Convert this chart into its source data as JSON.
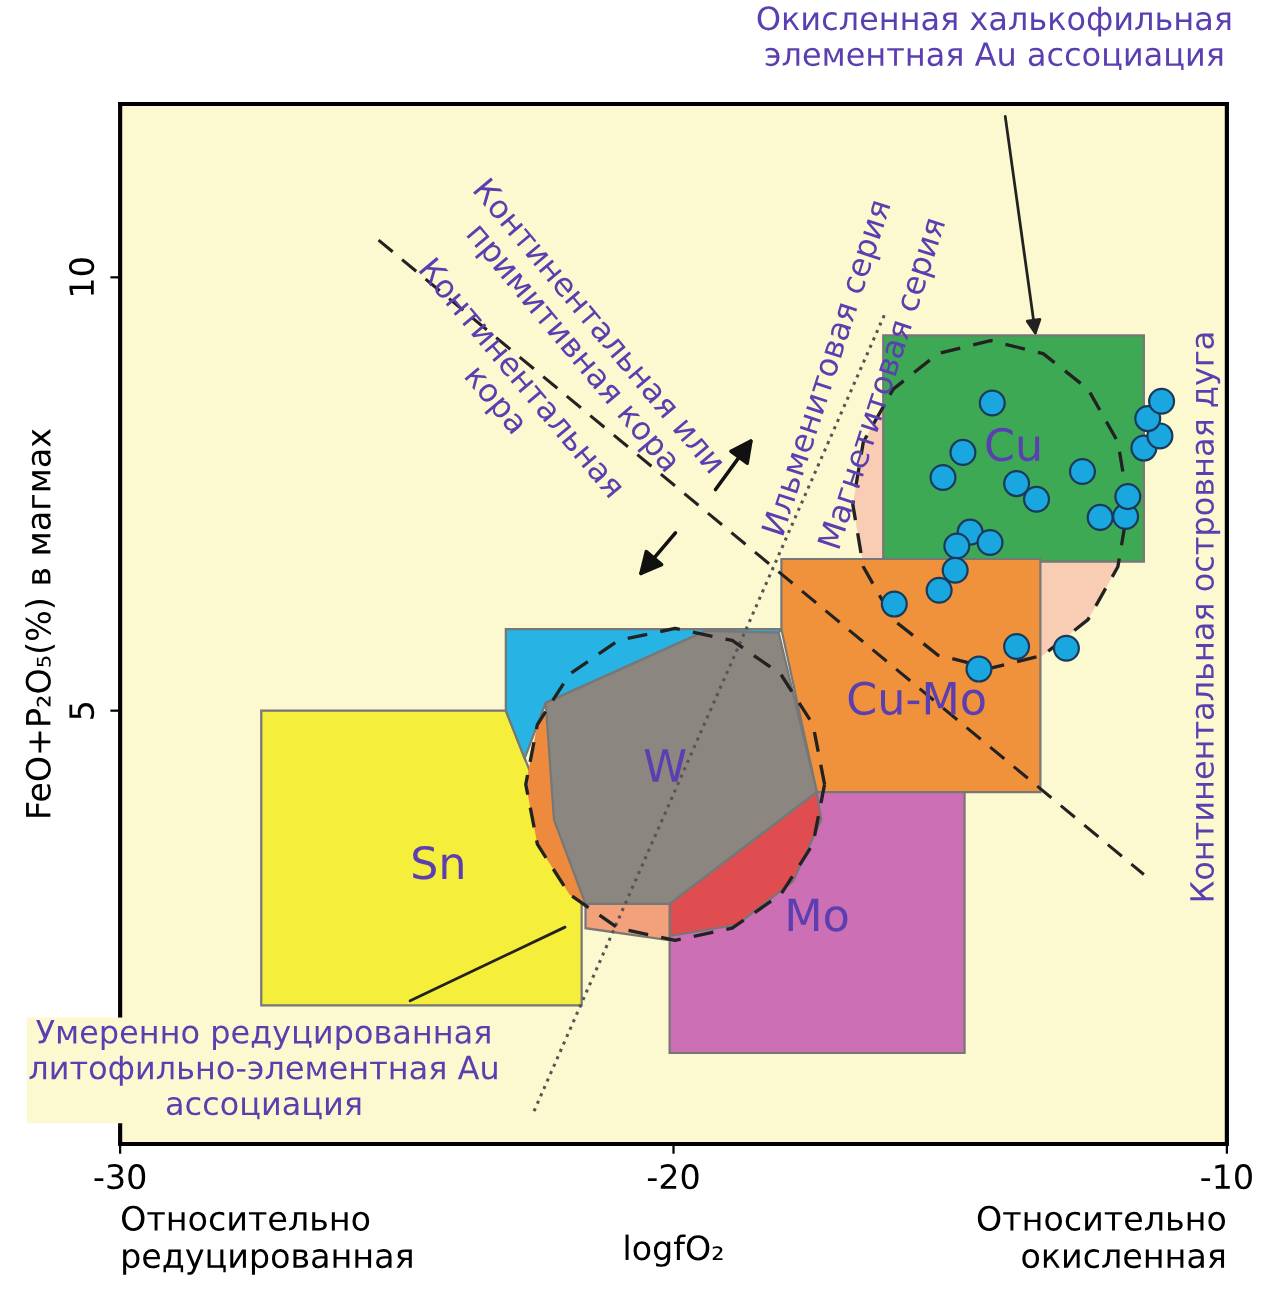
{
  "chart_data": {
    "type": "area",
    "xlabel": "logfO₂",
    "ylabel": "FeO+P₂O₅(%) в магмах",
    "xlim": [
      -30,
      -10
    ],
    "ylim": [
      0,
      12
    ],
    "xticks": [
      -30,
      -20,
      -10
    ],
    "yticks": [
      5,
      10
    ],
    "grid": false,
    "series": [
      {
        "color": "#f8cdb3",
        "line_style": "dashed",
        "x": [
          -11.78,
          -11.97,
          -12.51,
          -13.32,
          -14.27,
          -15.22,
          -16.03,
          -16.57,
          -16.76,
          -16.57,
          -16.03,
          -15.22,
          -14.27,
          -13.32,
          -12.51,
          -11.97
        ],
        "values": [
          7.38,
          8.1,
          8.71,
          9.12,
          9.27,
          9.12,
          8.71,
          8.1,
          7.38,
          6.66,
          6.05,
          5.64,
          5.49,
          5.64,
          6.05,
          6.66
        ]
      },
      {
        "name": "Cu",
        "color": "#3ea955",
        "x": [
          -16.21,
          -11.5,
          -11.5,
          -16.21
        ],
        "values": [
          9.33,
          9.33,
          6.72,
          6.72
        ]
      },
      {
        "name": "Sn",
        "color": "#f5ee3a",
        "x": [
          -27.45,
          -23.03,
          -21.66,
          -21.66,
          -27.45
        ],
        "values": [
          5.0,
          5.0,
          2.8,
          1.6,
          1.6
        ]
      },
      {
        "color": "#ee8a3e",
        "line_style": "dashed",
        "x": [
          -17.27,
          -17.48,
          -18.06,
          -18.94,
          -19.97,
          -21.0,
          -21.88,
          -22.46,
          -22.67,
          -22.46,
          -21.88,
          -21.0,
          -19.97,
          -18.94,
          -18.06,
          -17.48
        ],
        "values": [
          4.15,
          4.84,
          5.42,
          5.81,
          5.95,
          5.81,
          5.42,
          4.84,
          4.15,
          3.46,
          2.88,
          2.49,
          2.35,
          2.49,
          2.88,
          3.46
        ]
      },
      {
        "color": "#27b4e4",
        "x": [
          -23.03,
          -18.05,
          -18.1,
          -19.42,
          -22.31,
          -22.69,
          -23.03
        ],
        "values": [
          5.94,
          5.94,
          5.9,
          5.92,
          5.09,
          4.45,
          5.0
        ]
      },
      {
        "name": "Cu-Mo",
        "color": "#f0923c",
        "x": [
          -18.05,
          -13.37,
          -13.37,
          -14.0,
          -15.0,
          -17.41,
          -18.05
        ],
        "values": [
          6.75,
          6.75,
          4.06,
          4.06,
          4.06,
          4.06,
          5.94
        ]
      },
      {
        "name": "W",
        "color": "#8b8680",
        "x": [
          -22.31,
          -19.42,
          -18.1,
          -17.41,
          -20.07,
          -21.59,
          -22.16
        ],
        "values": [
          5.09,
          5.92,
          5.9,
          4.06,
          2.77,
          2.77,
          3.74
        ]
      },
      {
        "name": "Mo",
        "color": "#cc6fb5",
        "x": [
          -17.41,
          -14.74,
          -14.74,
          -20.07,
          -20.07
        ],
        "values": [
          4.06,
          4.06,
          1.05,
          1.05,
          2.77
        ]
      },
      {
        "color": "#e04d50",
        "x": [
          -17.41,
          -20.07,
          -20.07,
          -18.85,
          -17.84,
          -17.33
        ],
        "values": [
          4.06,
          2.77,
          2.4,
          2.53,
          3.03,
          3.74
        ]
      },
      {
        "color": "#f2a17a",
        "x": [
          -21.59,
          -20.07,
          -20.07,
          -21.59
        ],
        "values": [
          2.77,
          2.77,
          2.35,
          2.49
        ]
      },
      {
        "type": "line",
        "color": "#222222",
        "line_style": "dashed",
        "x": [
          -25.33,
          -11.5
        ],
        "values": [
          10.43,
          3.11
        ]
      },
      {
        "type": "line",
        "color": "#555555",
        "line_style": "dotted",
        "x": [
          -22.52,
          -16.18
        ],
        "values": [
          0.38,
          9.58
        ]
      },
      {
        "type": "scatter",
        "color": "#1aa7e0",
        "marker": "circle",
        "x": [
          -14.24,
          -14.77,
          -15.13,
          -13.8,
          -13.44,
          -12.61,
          -12.29,
          -11.83,
          -11.79,
          -11.5,
          -11.21,
          -11.43,
          -11.18,
          -14.64,
          -14.28,
          -14.88,
          -14.91,
          -15.2,
          -16.01,
          -13.8,
          -12.9,
          -14.48
        ],
        "values": [
          8.55,
          7.98,
          7.69,
          7.62,
          7.44,
          7.76,
          7.23,
          7.24,
          7.47,
          8.03,
          8.17,
          8.37,
          8.57,
          7.06,
          6.94,
          6.9,
          6.62,
          6.39,
          6.23,
          5.74,
          5.72,
          5.48
        ]
      }
    ],
    "annotations": [
      "Относительно\nредуцированная",
      "Относительно\nокисленная",
      "Окисленная халькофильная\nэлементная Au ассоциация",
      "Умеренно редуцированная\nлитофильно-элементная Au\nассоциация",
      "Континентальная или\nпримитивная кора",
      "Континентальная\nкора",
      "Ильменитовая серия",
      "Магнетитовая серия",
      "Континентальная островная дуга"
    ]
  }
}
